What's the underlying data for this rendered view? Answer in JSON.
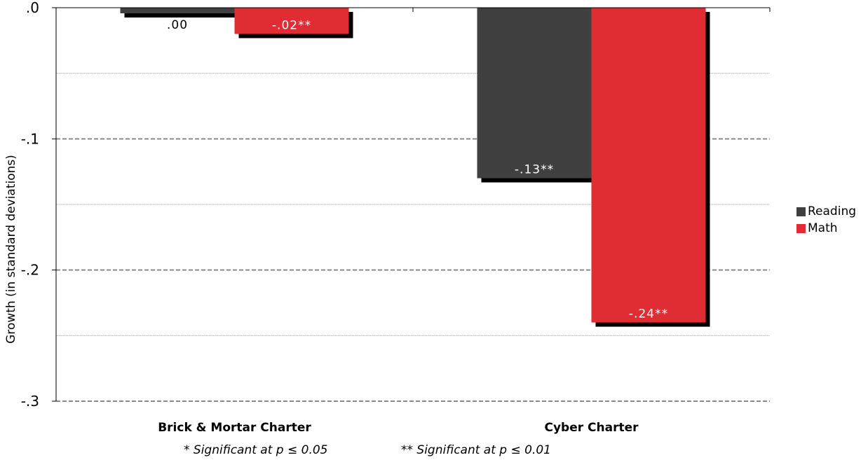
{
  "chart_data": {
    "type": "bar",
    "categories": [
      "Brick & Mortar Charter",
      "Cyber Charter"
    ],
    "series": [
      {
        "name": "Reading",
        "color": "#404040",
        "values": [
          0.0,
          -0.13
        ],
        "labels": [
          ".00",
          "-.13**"
        ]
      },
      {
        "name": "Math",
        "color": "#e02d33",
        "values": [
          -0.02,
          -0.24
        ],
        "labels": [
          "-.02**",
          "-.24**"
        ]
      }
    ],
    "ylabel": "Growth (in standard deviations)",
    "ylim": [
      -0.3,
      0.0
    ],
    "yticks": [
      0.0,
      -0.1,
      -0.2,
      -0.3
    ],
    "ytick_labels": [
      ".0",
      "-.1",
      "-.2",
      "-.3"
    ],
    "grid": true,
    "legend_position": "right",
    "footnotes": [
      "* Significant at p ≤ 0.05",
      "** Significant at p ≤ 0.01"
    ]
  }
}
